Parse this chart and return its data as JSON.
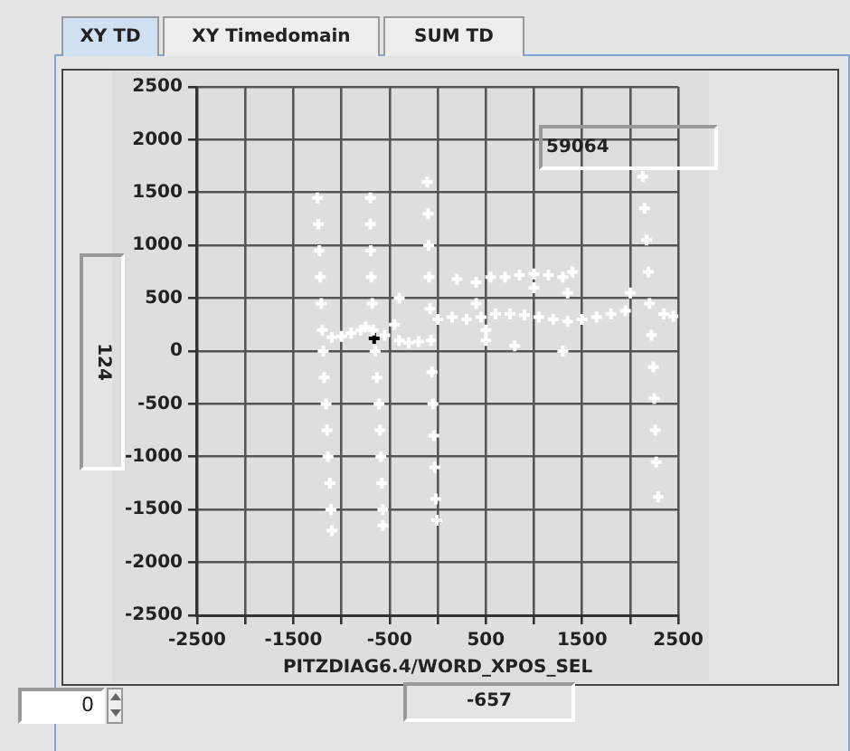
{
  "chart_data": {
    "type": "scatter",
    "xlabel": "PITZDIAG6.4/WORD_XPOS_SEL",
    "annotations": [
      "XY TD",
      "XY Timedomain",
      "SUM TD",
      "59064",
      "124",
      "-657",
      "0"
    ],
    "xlim": [
      -2500,
      2500
    ],
    "xticks": [
      -2500,
      {
        "value": -2000,
        "label": null
      },
      -1500,
      {
        "value": -1000,
        "label": null
      },
      -500,
      {
        "value": 0,
        "label": null
      },
      500,
      {
        "value": 1000,
        "label": null
      },
      1500,
      {
        "value": 2000,
        "label": null
      },
      2500
    ],
    "ylim": [
      -2500,
      2500
    ],
    "yticks": [
      -2500,
      -2000,
      -1500,
      -1000,
      -500,
      0,
      500,
      1000,
      1500,
      2000,
      2500
    ],
    "grid": true,
    "marker": "cross",
    "series": [
      {
        "color": "#ffffff",
        "x": [
          -1250,
          -1240,
          -1230,
          -1220,
          -1210,
          -1200,
          -1190,
          -1180,
          -1160,
          -1150,
          -1140,
          -1120,
          -1110,
          -1100,
          -700,
          -700,
          -695,
          -690,
          -680,
          -670,
          -650,
          -630,
          -610,
          -600,
          -590,
          -580,
          -570,
          -570,
          -110,
          -100,
          -95,
          -90,
          -80,
          -70,
          -60,
          -50,
          -40,
          -30,
          -20,
          -10,
          2130,
          2150,
          2170,
          2190,
          2200,
          2220,
          2240,
          2250,
          2260,
          2270,
          2290,
          -1100,
          -1000,
          -900,
          -800,
          -750,
          -550,
          -450,
          -400,
          -300,
          -200,
          0,
          150,
          300,
          450,
          600,
          750,
          900,
          1050,
          1200,
          1350,
          1500,
          1650,
          1800,
          1950,
          2350,
          2450,
          200,
          400,
          550,
          700,
          850,
          1000,
          1150,
          1300,
          1400,
          1000,
          1350,
          -400,
          400,
          500,
          800,
          1300,
          2000,
          500
        ],
        "values": [
          1450,
          1200,
          950,
          700,
          450,
          200,
          0,
          -250,
          -500,
          -750,
          -1000,
          -1250,
          -1500,
          -1700,
          1450,
          1200,
          950,
          700,
          450,
          200,
          0,
          -250,
          -500,
          -750,
          -1000,
          -1250,
          -1500,
          -1650,
          1600,
          1300,
          1000,
          700,
          400,
          100,
          -200,
          -500,
          -800,
          -1100,
          -1400,
          -1600,
          1650,
          1350,
          1050,
          750,
          450,
          150,
          -150,
          -450,
          -750,
          -1050,
          -1380,
          130,
          140,
          170,
          200,
          230,
          150,
          250,
          100,
          80,
          90,
          300,
          320,
          300,
          320,
          350,
          350,
          340,
          320,
          300,
          280,
          300,
          320,
          350,
          380,
          350,
          330,
          680,
          650,
          700,
          700,
          720,
          730,
          720,
          700,
          750,
          600,
          550,
          500,
          450,
          200,
          50,
          0,
          550,
          100
        ]
      },
      {
        "color": "#000000",
        "x": [
          -660
        ],
        "values": [
          120
        ]
      }
    ]
  }
}
